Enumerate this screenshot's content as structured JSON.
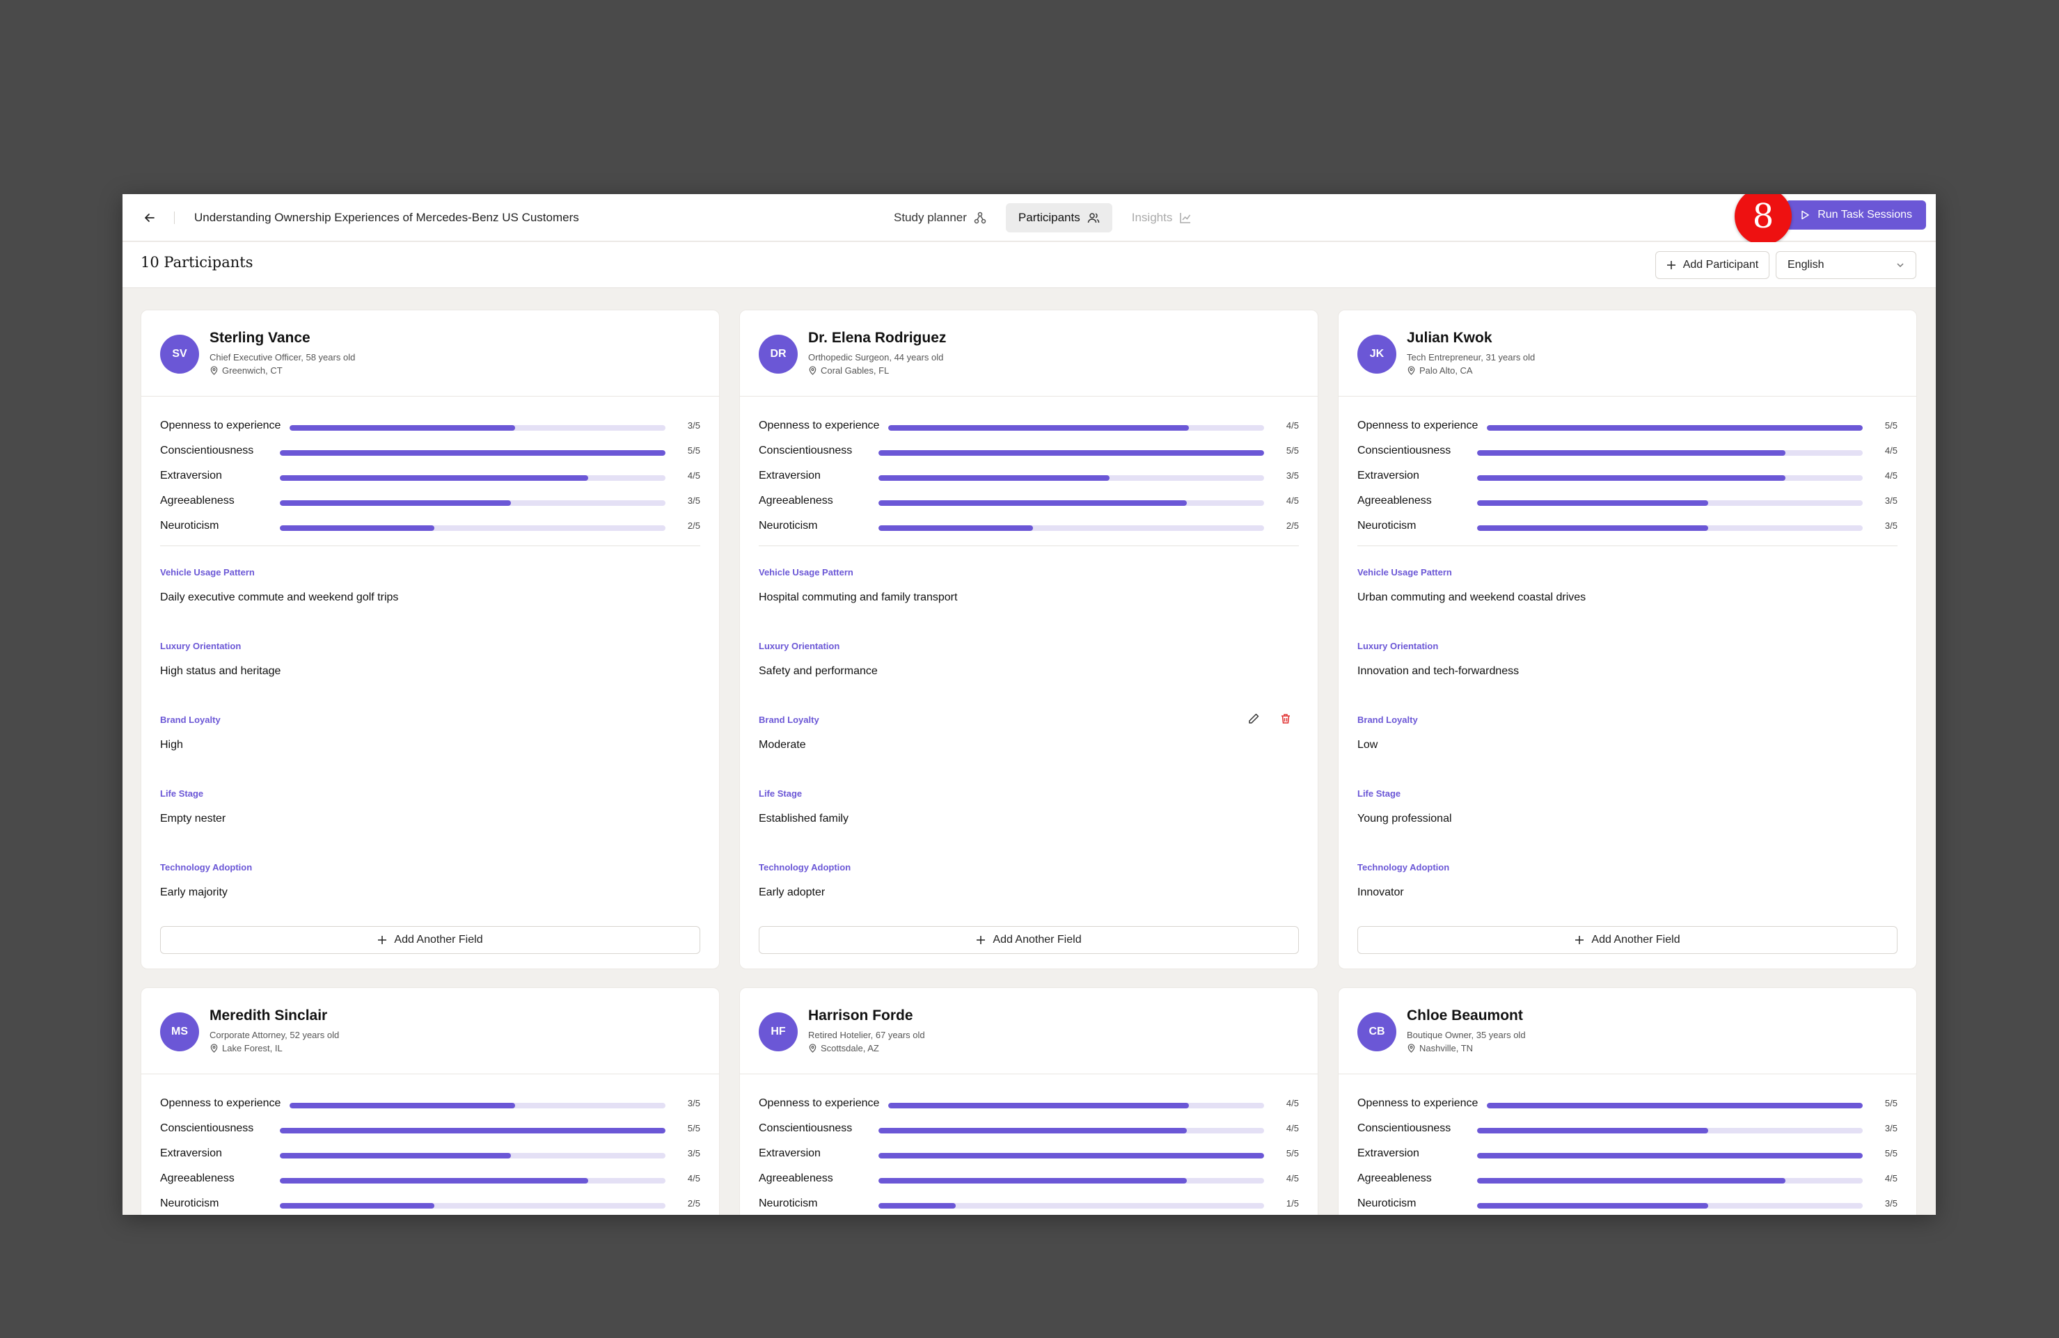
{
  "header": {
    "study_title": "Understanding Ownership Experiences of Mercedes-Benz US Customers",
    "tabs": [
      {
        "label": "Study planner",
        "icon": "tree-icon",
        "state": "normal"
      },
      {
        "label": "Participants",
        "icon": "users-icon",
        "state": "active"
      },
      {
        "label": "Insights",
        "icon": "chart-icon",
        "state": "disabled"
      }
    ],
    "run_button_label": "Run Task Sessions",
    "badge_number": "8"
  },
  "subheader": {
    "participants_count": "10 Participants",
    "add_participant_label": "Add Participant",
    "language_selected": "English"
  },
  "colors": {
    "accent": "#6b57d6",
    "bar_track": "#e4e0f5",
    "badge": "#ee1111",
    "delete": "#e03030"
  },
  "add_field_label": "Add Another Field",
  "participants": [
    {
      "initials": "SV",
      "name": "Sterling Vance",
      "role": "Chief Executive Officer, 58 years old",
      "location": "Greenwich, CT",
      "traits": [
        {
          "label": "Openness to experience",
          "value": 3,
          "score": "3/5"
        },
        {
          "label": "Conscientiousness",
          "value": 5,
          "score": "5/5"
        },
        {
          "label": "Extraversion",
          "value": 4,
          "score": "4/5"
        },
        {
          "label": "Agreeableness",
          "value": 3,
          "score": "3/5"
        },
        {
          "label": "Neuroticism",
          "value": 2,
          "score": "2/5"
        }
      ],
      "fields": [
        {
          "label": "Vehicle Usage Pattern",
          "value": "Daily executive commute and weekend golf trips"
        },
        {
          "label": "Luxury Orientation",
          "value": "High status and heritage"
        },
        {
          "label": "Brand Loyalty",
          "value": "High"
        },
        {
          "label": "Life Stage",
          "value": "Empty nester"
        },
        {
          "label": "Technology Adoption",
          "value": "Early majority"
        }
      ]
    },
    {
      "initials": "DR",
      "name": "Dr. Elena Rodriguez",
      "role": "Orthopedic Surgeon, 44 years old",
      "location": "Coral Gables, FL",
      "traits": [
        {
          "label": "Openness to experience",
          "value": 4,
          "score": "4/5"
        },
        {
          "label": "Conscientiousness",
          "value": 5,
          "score": "5/5"
        },
        {
          "label": "Extraversion",
          "value": 3,
          "score": "3/5"
        },
        {
          "label": "Agreeableness",
          "value": 4,
          "score": "4/5"
        },
        {
          "label": "Neuroticism",
          "value": 2,
          "score": "2/5"
        }
      ],
      "fields": [
        {
          "label": "Vehicle Usage Pattern",
          "value": "Hospital commuting and family transport"
        },
        {
          "label": "Luxury Orientation",
          "value": "Safety and performance"
        },
        {
          "label": "Brand Loyalty",
          "value": "Moderate",
          "hovered": true
        },
        {
          "label": "Life Stage",
          "value": "Established family"
        },
        {
          "label": "Technology Adoption",
          "value": "Early adopter"
        }
      ]
    },
    {
      "initials": "JK",
      "name": "Julian Kwok",
      "role": "Tech Entrepreneur, 31 years old",
      "location": "Palo Alto, CA",
      "traits": [
        {
          "label": "Openness to experience",
          "value": 5,
          "score": "5/5"
        },
        {
          "label": "Conscientiousness",
          "value": 4,
          "score": "4/5"
        },
        {
          "label": "Extraversion",
          "value": 4,
          "score": "4/5"
        },
        {
          "label": "Agreeableness",
          "value": 3,
          "score": "3/5"
        },
        {
          "label": "Neuroticism",
          "value": 3,
          "score": "3/5"
        }
      ],
      "fields": [
        {
          "label": "Vehicle Usage Pattern",
          "value": "Urban commuting and weekend coastal drives"
        },
        {
          "label": "Luxury Orientation",
          "value": "Innovation and tech-forwardness"
        },
        {
          "label": "Brand Loyalty",
          "value": "Low"
        },
        {
          "label": "Life Stage",
          "value": "Young professional"
        },
        {
          "label": "Technology Adoption",
          "value": "Innovator"
        }
      ]
    },
    {
      "initials": "MS",
      "name": "Meredith Sinclair",
      "role": "Corporate Attorney, 52 years old",
      "location": "Lake Forest, IL",
      "traits": [
        {
          "label": "Openness to experience",
          "value": 3,
          "score": "3/5"
        },
        {
          "label": "Conscientiousness",
          "value": 5,
          "score": "5/5"
        },
        {
          "label": "Extraversion",
          "value": 3,
          "score": "3/5"
        },
        {
          "label": "Agreeableness",
          "value": 4,
          "score": "4/5"
        },
        {
          "label": "Neuroticism",
          "value": 2,
          "score": "2/5"
        }
      ],
      "fields": []
    },
    {
      "initials": "HF",
      "name": "Harrison Forde",
      "role": "Retired Hotelier, 67 years old",
      "location": "Scottsdale, AZ",
      "traits": [
        {
          "label": "Openness to experience",
          "value": 4,
          "score": "4/5"
        },
        {
          "label": "Conscientiousness",
          "value": 4,
          "score": "4/5"
        },
        {
          "label": "Extraversion",
          "value": 5,
          "score": "5/5"
        },
        {
          "label": "Agreeableness",
          "value": 4,
          "score": "4/5"
        },
        {
          "label": "Neuroticism",
          "value": 1,
          "score": "1/5"
        }
      ],
      "fields": []
    },
    {
      "initials": "CB",
      "name": "Chloe Beaumont",
      "role": "Boutique Owner, 35 years old",
      "location": "Nashville, TN",
      "traits": [
        {
          "label": "Openness to experience",
          "value": 5,
          "score": "5/5"
        },
        {
          "label": "Conscientiousness",
          "value": 3,
          "score": "3/5"
        },
        {
          "label": "Extraversion",
          "value": 5,
          "score": "5/5"
        },
        {
          "label": "Agreeableness",
          "value": 4,
          "score": "4/5"
        },
        {
          "label": "Neuroticism",
          "value": 3,
          "score": "3/5"
        }
      ],
      "fields": []
    }
  ]
}
